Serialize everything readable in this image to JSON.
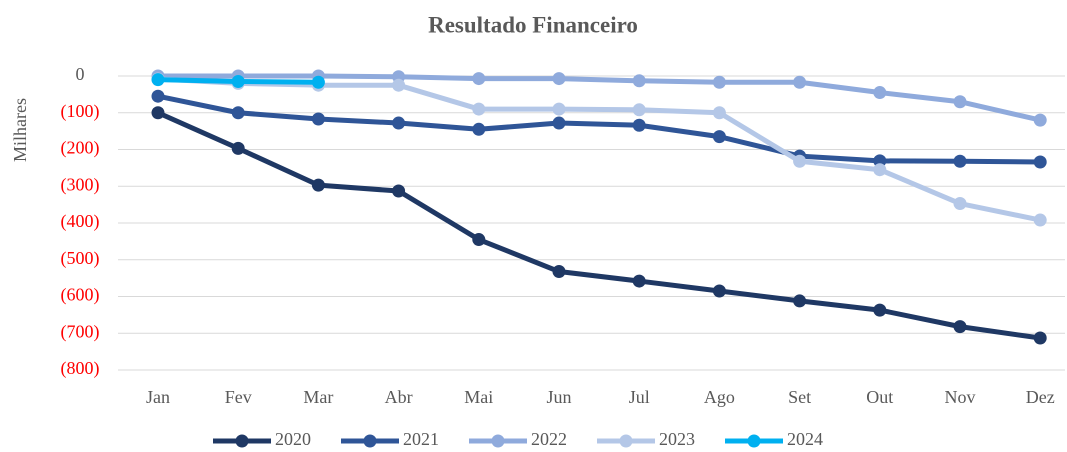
{
  "chart_data": {
    "type": "line",
    "title": "Resultado Financeiro",
    "y_label": "Milhares",
    "categories": [
      "Jan",
      "Fev",
      "Mar",
      "Abr",
      "Mai",
      "Jun",
      "Jul",
      "Ago",
      "Set",
      "Out",
      "Nov",
      "Dez"
    ],
    "series": [
      {
        "name": "2020",
        "color": "#1f3864",
        "values": [
          -100,
          -197,
          -297,
          -313,
          -445,
          -532,
          -558,
          -585,
          -612,
          -637,
          -682,
          -713
        ]
      },
      {
        "name": "2021",
        "color": "#2f5597",
        "values": [
          -55,
          -100,
          -117,
          -128,
          -145,
          -128,
          -134,
          -165,
          -218,
          -231,
          -232,
          -234
        ]
      },
      {
        "name": "2022",
        "color": "#8faadc",
        "values": [
          0,
          0,
          0,
          -2,
          -7,
          -7,
          -13,
          -17,
          -17,
          -45,
          -70,
          -120
        ]
      },
      {
        "name": "2023",
        "color": "#b4c7e7",
        "values": [
          -8,
          -20,
          -25,
          -25,
          -90,
          -90,
          -92,
          -100,
          -232,
          -255,
          -347,
          -392
        ]
      },
      {
        "name": "2024",
        "color": "#00b0f0",
        "values": [
          -10,
          -15,
          -17,
          null,
          null,
          null,
          null,
          null,
          null,
          null,
          null,
          null
        ]
      }
    ],
    "ylim": [
      -800,
      0
    ],
    "yticks": [
      0,
      {
        "value": -100,
        "label": "(100)"
      },
      {
        "value": -200,
        "label": "(200)"
      },
      {
        "value": -300,
        "label": "(300)"
      },
      {
        "value": -400,
        "label": "(400)"
      },
      {
        "value": -500,
        "label": "(500)"
      },
      {
        "value": -600,
        "label": "(600)"
      },
      {
        "value": -700,
        "label": "(700)"
      },
      {
        "value": -800,
        "label": "(800)"
      }
    ],
    "grid": true,
    "legend": "bottom"
  }
}
